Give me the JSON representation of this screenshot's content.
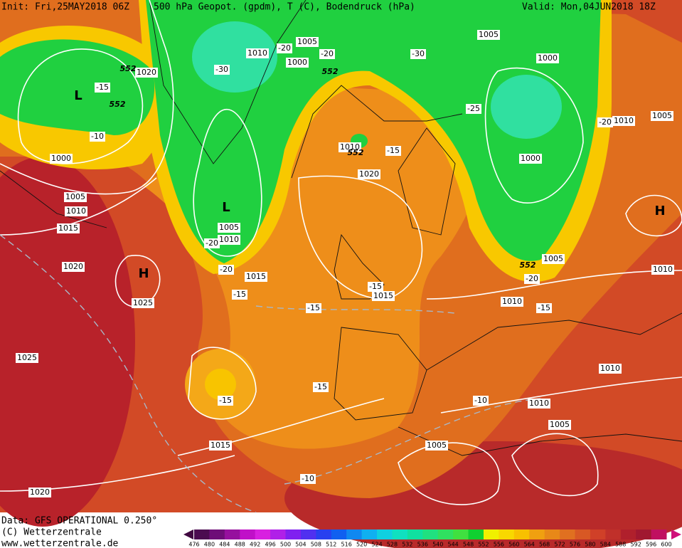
{
  "header": {
    "init": "Init: Fri,25MAY2018 06Z",
    "title": "500 hPa Geopot. (gpdm), T (C), Bodendruck (hPa)",
    "valid": "Valid: Mon,04JUN2018 18Z"
  },
  "footer": {
    "data": "Data: GFS OPERATIONAL 0.250°",
    "copyright": "(C) Wetterzentrale",
    "url": "www.wetterzentrale.de"
  },
  "legend": {
    "labels": [
      476,
      480,
      484,
      488,
      492,
      496,
      500,
      504,
      508,
      512,
      516,
      520,
      524,
      528,
      532,
      536,
      540,
      544,
      548,
      552,
      556,
      560,
      564,
      568,
      572,
      576,
      580,
      584,
      588,
      592,
      596,
      600
    ],
    "colors": [
      "#4b0b50",
      "#6e0d78",
      "#96109e",
      "#c010c8",
      "#d820e0",
      "#b020e8",
      "#8020f0",
      "#5030f0",
      "#2840f0",
      "#1060f0",
      "#1088f0",
      "#10b0f0",
      "#10d0e0",
      "#10e0c0",
      "#10e0a0",
      "#20e080",
      "#30e060",
      "#40e040",
      "#10d030",
      "#f0f000",
      "#f8d800",
      "#f8c000",
      "#f0a010",
      "#e88818",
      "#e07020",
      "#d85824",
      "#d04028",
      "#c0302a",
      "#b0202c",
      "#a01830",
      "#c01060"
    ]
  },
  "map": {
    "labels": [
      "L",
      "L",
      "H",
      "H",
      "1020",
      "1000",
      "1005",
      "1010",
      "1015",
      "1020",
      "1025",
      "1025",
      "1015",
      "1020",
      "1010",
      "1005",
      "1000",
      "1010",
      "1020",
      "1005",
      "1010",
      "1015",
      "1015",
      "1005",
      "1000",
      "1000",
      "1005",
      "1010",
      "1005",
      "1010",
      "1010",
      "1010",
      "1010",
      "1005",
      "1005",
      "-15",
      "-10",
      "-30",
      "-20",
      "-20",
      "-30",
      "-25",
      "-20",
      "-15",
      "-20",
      "-20",
      "-15",
      "-15",
      "-15",
      "-20",
      "-15",
      "-15",
      "-15",
      "-10",
      "-10",
      "552",
      "552",
      "552",
      "552",
      "552"
    ]
  }
}
